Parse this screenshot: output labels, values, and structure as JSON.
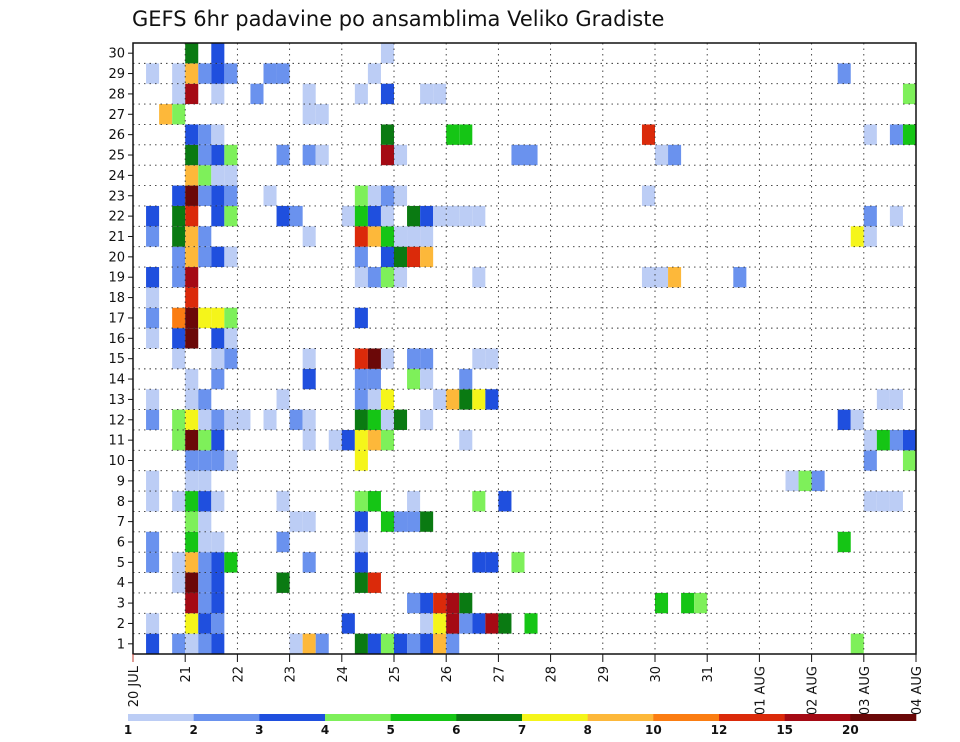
{
  "chart_data": {
    "type": "heatmap",
    "title": "GEFS 6hr padavine po ansamblima Veliko Gradiste",
    "xlabel": "",
    "ylabel": "",
    "x_tick_labels": [
      "20 JUL",
      "21",
      "22",
      "23",
      "24",
      "25",
      "26",
      "27",
      "28",
      "29",
      "30",
      "31",
      "01 AUG",
      "02 AUG",
      "03 AUG",
      "04 AUG"
    ],
    "y_tick_labels": [
      "1",
      "2",
      "3",
      "4",
      "5",
      "6",
      "7",
      "8",
      "9",
      "10",
      "11",
      "12",
      "13",
      "14",
      "15",
      "16",
      "17",
      "18",
      "19",
      "20",
      "21",
      "22",
      "23",
      "24",
      "25",
      "26",
      "27",
      "28",
      "29",
      "30"
    ],
    "xlim_days": [
      0,
      15
    ],
    "ylim_members": [
      0,
      30
    ],
    "time_step_hours": 6,
    "grid": "dotted",
    "colorbar": {
      "levels": [
        "1",
        "2",
        "3",
        "4",
        "5",
        "6",
        "7",
        "8",
        "10",
        "12",
        "15",
        "20"
      ],
      "colors": [
        "#bccdf5",
        "#6a92ee",
        "#1f4fde",
        "#7ef05a",
        "#15c515",
        "#0a7a12",
        "#f5f51a",
        "#fdb83a",
        "#fb7d12",
        "#db2a0a",
        "#a50a14",
        "#6b0808"
      ]
    },
    "cells": [
      [
        0.25,
        1,
        "c3"
      ],
      [
        0.75,
        1,
        "c2"
      ],
      [
        1.0,
        1,
        "c1"
      ],
      [
        1.25,
        1,
        "c2"
      ],
      [
        1.5,
        1,
        "c3"
      ],
      [
        3.0,
        1,
        "c1"
      ],
      [
        3.25,
        1,
        "c8"
      ],
      [
        3.5,
        1,
        "c2"
      ],
      [
        4.25,
        1,
        "c6"
      ],
      [
        4.5,
        1,
        "c3"
      ],
      [
        4.75,
        1,
        "c4"
      ],
      [
        5.0,
        1,
        "c3"
      ],
      [
        5.25,
        1,
        "c2"
      ],
      [
        5.5,
        1,
        "c3"
      ],
      [
        5.75,
        1,
        "c8"
      ],
      [
        6.0,
        1,
        "c2"
      ],
      [
        13.75,
        1,
        "c4"
      ],
      [
        0.25,
        2,
        "c1"
      ],
      [
        1.0,
        2,
        "c7"
      ],
      [
        1.25,
        2,
        "c3"
      ],
      [
        1.5,
        2,
        "c2"
      ],
      [
        4.0,
        2,
        "c3"
      ],
      [
        5.5,
        2,
        "c1"
      ],
      [
        5.75,
        2,
        "c7"
      ],
      [
        6.0,
        2,
        "c11"
      ],
      [
        6.25,
        2,
        "c2"
      ],
      [
        6.5,
        2,
        "c3"
      ],
      [
        6.75,
        2,
        "c11"
      ],
      [
        7.0,
        2,
        "c6"
      ],
      [
        7.5,
        2,
        "c5"
      ],
      [
        1.0,
        3,
        "c11"
      ],
      [
        1.25,
        3,
        "c2"
      ],
      [
        1.5,
        3,
        "c3"
      ],
      [
        5.25,
        3,
        "c2"
      ],
      [
        5.5,
        3,
        "c3"
      ],
      [
        5.75,
        3,
        "c10"
      ],
      [
        6.0,
        3,
        "c11"
      ],
      [
        6.25,
        3,
        "c6"
      ],
      [
        10.0,
        3,
        "c5"
      ],
      [
        10.5,
        3,
        "c5"
      ],
      [
        10.75,
        3,
        "c4"
      ],
      [
        0.75,
        4,
        "c1"
      ],
      [
        1.0,
        4,
        "c12"
      ],
      [
        1.25,
        4,
        "c2"
      ],
      [
        1.5,
        4,
        "c3"
      ],
      [
        2.75,
        4,
        "c6"
      ],
      [
        4.25,
        4,
        "c6"
      ],
      [
        4.5,
        4,
        "c10"
      ],
      [
        0.25,
        5,
        "c2"
      ],
      [
        0.75,
        5,
        "c1"
      ],
      [
        1.0,
        5,
        "c8"
      ],
      [
        1.25,
        5,
        "c2"
      ],
      [
        1.5,
        5,
        "c3"
      ],
      [
        1.75,
        5,
        "c5"
      ],
      [
        3.25,
        5,
        "c2"
      ],
      [
        4.25,
        5,
        "c3"
      ],
      [
        6.5,
        5,
        "c3"
      ],
      [
        6.75,
        5,
        "c3"
      ],
      [
        7.25,
        5,
        "c4"
      ],
      [
        0.25,
        6,
        "c2"
      ],
      [
        1.0,
        6,
        "c5"
      ],
      [
        1.25,
        6,
        "c1"
      ],
      [
        1.5,
        6,
        "c1"
      ],
      [
        2.75,
        6,
        "c2"
      ],
      [
        4.25,
        6,
        "c1"
      ],
      [
        13.5,
        6,
        "c5"
      ],
      [
        1.0,
        7,
        "c4"
      ],
      [
        1.25,
        7,
        "c1"
      ],
      [
        3.0,
        7,
        "c1"
      ],
      [
        3.25,
        7,
        "c1"
      ],
      [
        4.25,
        7,
        "c3"
      ],
      [
        4.75,
        7,
        "c5"
      ],
      [
        5.0,
        7,
        "c2"
      ],
      [
        5.25,
        7,
        "c2"
      ],
      [
        5.5,
        7,
        "c6"
      ],
      [
        0.25,
        8,
        "c1"
      ],
      [
        0.75,
        8,
        "c1"
      ],
      [
        1.0,
        8,
        "c5"
      ],
      [
        1.25,
        8,
        "c3"
      ],
      [
        1.5,
        8,
        "c1"
      ],
      [
        2.75,
        8,
        "c1"
      ],
      [
        4.25,
        8,
        "c4"
      ],
      [
        4.5,
        8,
        "c5"
      ],
      [
        5.25,
        8,
        "c1"
      ],
      [
        6.5,
        8,
        "c4"
      ],
      [
        7.0,
        8,
        "c3"
      ],
      [
        14.0,
        8,
        "c1"
      ],
      [
        14.25,
        8,
        "c1"
      ],
      [
        14.5,
        8,
        "c1"
      ],
      [
        0.25,
        9,
        "c1"
      ],
      [
        1.0,
        9,
        "c1"
      ],
      [
        1.25,
        9,
        "c1"
      ],
      [
        12.5,
        9,
        "c1"
      ],
      [
        12.75,
        9,
        "c4"
      ],
      [
        13.0,
        9,
        "c2"
      ],
      [
        1.0,
        10,
        "c2"
      ],
      [
        1.25,
        10,
        "c2"
      ],
      [
        1.5,
        10,
        "c2"
      ],
      [
        1.75,
        10,
        "c1"
      ],
      [
        4.25,
        10,
        "c7"
      ],
      [
        14.0,
        10,
        "c2"
      ],
      [
        14.75,
        10,
        "c4"
      ],
      [
        0.75,
        11,
        "c4"
      ],
      [
        1.0,
        11,
        "c12"
      ],
      [
        1.25,
        11,
        "c4"
      ],
      [
        1.5,
        11,
        "c3"
      ],
      [
        3.25,
        11,
        "c1"
      ],
      [
        3.75,
        11,
        "c1"
      ],
      [
        4.0,
        11,
        "c3"
      ],
      [
        4.25,
        11,
        "c7"
      ],
      [
        4.5,
        11,
        "c8"
      ],
      [
        4.75,
        11,
        "c4"
      ],
      [
        6.25,
        11,
        "c1"
      ],
      [
        14.0,
        11,
        "c1"
      ],
      [
        14.25,
        11,
        "c5"
      ],
      [
        14.5,
        11,
        "c2"
      ],
      [
        14.75,
        11,
        "c3"
      ],
      [
        0.25,
        12,
        "c2"
      ],
      [
        0.75,
        12,
        "c4"
      ],
      [
        1.0,
        12,
        "c7"
      ],
      [
        1.25,
        12,
        "c1"
      ],
      [
        1.5,
        12,
        "c2"
      ],
      [
        1.75,
        12,
        "c1"
      ],
      [
        2.0,
        12,
        "c1"
      ],
      [
        2.5,
        12,
        "c1"
      ],
      [
        3.0,
        12,
        "c2"
      ],
      [
        3.25,
        12,
        "c1"
      ],
      [
        4.25,
        12,
        "c6"
      ],
      [
        4.5,
        12,
        "c5"
      ],
      [
        4.75,
        12,
        "c1"
      ],
      [
        5.0,
        12,
        "c6"
      ],
      [
        5.5,
        12,
        "c1"
      ],
      [
        13.5,
        12,
        "c3"
      ],
      [
        13.75,
        12,
        "c1"
      ],
      [
        0.25,
        13,
        "c1"
      ],
      [
        1.0,
        13,
        "c1"
      ],
      [
        1.25,
        13,
        "c2"
      ],
      [
        2.75,
        13,
        "c1"
      ],
      [
        4.25,
        13,
        "c2"
      ],
      [
        4.5,
        13,
        "c1"
      ],
      [
        4.75,
        13,
        "c7"
      ],
      [
        5.75,
        13,
        "c1"
      ],
      [
        6.0,
        13,
        "c8"
      ],
      [
        6.25,
        13,
        "c6"
      ],
      [
        6.5,
        13,
        "c7"
      ],
      [
        6.75,
        13,
        "c3"
      ],
      [
        14.25,
        13,
        "c1"
      ],
      [
        14.5,
        13,
        "c1"
      ],
      [
        1.0,
        14,
        "c1"
      ],
      [
        1.5,
        14,
        "c2"
      ],
      [
        3.25,
        14,
        "c3"
      ],
      [
        4.25,
        14,
        "c2"
      ],
      [
        4.5,
        14,
        "c2"
      ],
      [
        5.25,
        14,
        "c4"
      ],
      [
        5.5,
        14,
        "c1"
      ],
      [
        6.25,
        14,
        "c2"
      ],
      [
        0.75,
        15,
        "c1"
      ],
      [
        1.5,
        15,
        "c1"
      ],
      [
        1.75,
        15,
        "c2"
      ],
      [
        3.25,
        15,
        "c1"
      ],
      [
        4.25,
        15,
        "c10"
      ],
      [
        4.5,
        15,
        "c12"
      ],
      [
        4.75,
        15,
        "c1"
      ],
      [
        5.25,
        15,
        "c2"
      ],
      [
        5.5,
        15,
        "c2"
      ],
      [
        6.5,
        15,
        "c1"
      ],
      [
        6.75,
        15,
        "c1"
      ],
      [
        0.25,
        16,
        "c1"
      ],
      [
        0.75,
        16,
        "c3"
      ],
      [
        1.0,
        16,
        "c12"
      ],
      [
        1.5,
        16,
        "c3"
      ],
      [
        1.75,
        16,
        "c1"
      ],
      [
        0.25,
        17,
        "c2"
      ],
      [
        0.75,
        17,
        "c9"
      ],
      [
        1.0,
        17,
        "c12"
      ],
      [
        1.25,
        17,
        "c7"
      ],
      [
        1.5,
        17,
        "c7"
      ],
      [
        1.75,
        17,
        "c4"
      ],
      [
        4.25,
        17,
        "c3"
      ],
      [
        0.25,
        18,
        "c1"
      ],
      [
        1.0,
        18,
        "c10"
      ],
      [
        0.25,
        19,
        "c3"
      ],
      [
        0.75,
        19,
        "c2"
      ],
      [
        1.0,
        19,
        "c11"
      ],
      [
        4.25,
        19,
        "c1"
      ],
      [
        4.5,
        19,
        "c2"
      ],
      [
        4.75,
        19,
        "c4"
      ],
      [
        5.0,
        19,
        "c1"
      ],
      [
        6.5,
        19,
        "c1"
      ],
      [
        9.75,
        19,
        "c1"
      ],
      [
        10.0,
        19,
        "c1"
      ],
      [
        10.25,
        19,
        "c8"
      ],
      [
        11.5,
        19,
        "c2"
      ],
      [
        0.75,
        20,
        "c2"
      ],
      [
        1.0,
        20,
        "c8"
      ],
      [
        1.25,
        20,
        "c2"
      ],
      [
        1.5,
        20,
        "c3"
      ],
      [
        1.75,
        20,
        "c1"
      ],
      [
        4.25,
        20,
        "c2"
      ],
      [
        4.75,
        20,
        "c3"
      ],
      [
        5.0,
        20,
        "c6"
      ],
      [
        5.25,
        20,
        "c10"
      ],
      [
        5.5,
        20,
        "c8"
      ],
      [
        0.25,
        21,
        "c2"
      ],
      [
        0.75,
        21,
        "c6"
      ],
      [
        1.0,
        21,
        "c8"
      ],
      [
        1.25,
        21,
        "c2"
      ],
      [
        3.25,
        21,
        "c1"
      ],
      [
        4.25,
        21,
        "c10"
      ],
      [
        4.5,
        21,
        "c8"
      ],
      [
        4.75,
        21,
        "c5"
      ],
      [
        5.0,
        21,
        "c1"
      ],
      [
        5.25,
        21,
        "c1"
      ],
      [
        5.5,
        21,
        "c1"
      ],
      [
        13.75,
        21,
        "c7"
      ],
      [
        14.0,
        21,
        "c1"
      ],
      [
        0.25,
        22,
        "c3"
      ],
      [
        0.75,
        22,
        "c6"
      ],
      [
        1.0,
        22,
        "c10"
      ],
      [
        1.5,
        22,
        "c3"
      ],
      [
        1.75,
        22,
        "c4"
      ],
      [
        2.75,
        22,
        "c3"
      ],
      [
        3.0,
        22,
        "c2"
      ],
      [
        4.0,
        22,
        "c1"
      ],
      [
        4.25,
        22,
        "c5"
      ],
      [
        4.5,
        22,
        "c3"
      ],
      [
        4.75,
        22,
        "c1"
      ],
      [
        5.25,
        22,
        "c6"
      ],
      [
        5.5,
        22,
        "c3"
      ],
      [
        5.75,
        22,
        "c1"
      ],
      [
        6.0,
        22,
        "c1"
      ],
      [
        6.25,
        22,
        "c1"
      ],
      [
        6.5,
        22,
        "c1"
      ],
      [
        14.0,
        22,
        "c2"
      ],
      [
        14.5,
        22,
        "c1"
      ],
      [
        0.75,
        23,
        "c3"
      ],
      [
        1.0,
        23,
        "c12"
      ],
      [
        1.25,
        23,
        "c2"
      ],
      [
        1.5,
        23,
        "c3"
      ],
      [
        1.75,
        23,
        "c2"
      ],
      [
        2.5,
        23,
        "c1"
      ],
      [
        4.25,
        23,
        "c4"
      ],
      [
        4.5,
        23,
        "c1"
      ],
      [
        4.75,
        23,
        "c2"
      ],
      [
        5.0,
        23,
        "c1"
      ],
      [
        9.75,
        23,
        "c1"
      ],
      [
        1.0,
        24,
        "c8"
      ],
      [
        1.25,
        24,
        "c4"
      ],
      [
        1.5,
        24,
        "c1"
      ],
      [
        1.75,
        24,
        "c1"
      ],
      [
        1.0,
        25,
        "c6"
      ],
      [
        1.25,
        25,
        "c2"
      ],
      [
        1.5,
        25,
        "c3"
      ],
      [
        1.75,
        25,
        "c4"
      ],
      [
        2.75,
        25,
        "c2"
      ],
      [
        3.25,
        25,
        "c2"
      ],
      [
        3.5,
        25,
        "c1"
      ],
      [
        4.75,
        25,
        "c11"
      ],
      [
        5.0,
        25,
        "c1"
      ],
      [
        7.25,
        25,
        "c2"
      ],
      [
        7.5,
        25,
        "c2"
      ],
      [
        10.0,
        25,
        "c1"
      ],
      [
        10.25,
        25,
        "c2"
      ],
      [
        1.0,
        26,
        "c3"
      ],
      [
        1.25,
        26,
        "c2"
      ],
      [
        1.5,
        26,
        "c1"
      ],
      [
        4.75,
        26,
        "c6"
      ],
      [
        6.0,
        26,
        "c5"
      ],
      [
        6.25,
        26,
        "c5"
      ],
      [
        9.75,
        26,
        "c10"
      ],
      [
        14.0,
        26,
        "c1"
      ],
      [
        14.5,
        26,
        "c2"
      ],
      [
        14.75,
        26,
        "c5"
      ],
      [
        0.5,
        27,
        "c8"
      ],
      [
        0.75,
        27,
        "c4"
      ],
      [
        3.25,
        27,
        "c1"
      ],
      [
        3.5,
        27,
        "c1"
      ],
      [
        0.75,
        28,
        "c1"
      ],
      [
        1.0,
        28,
        "c11"
      ],
      [
        1.5,
        28,
        "c1"
      ],
      [
        2.25,
        28,
        "c2"
      ],
      [
        3.25,
        28,
        "c1"
      ],
      [
        4.25,
        28,
        "c1"
      ],
      [
        4.75,
        28,
        "c3"
      ],
      [
        5.5,
        28,
        "c1"
      ],
      [
        5.75,
        28,
        "c1"
      ],
      [
        14.75,
        28,
        "c4"
      ],
      [
        0.25,
        29,
        "c1"
      ],
      [
        0.75,
        29,
        "c1"
      ],
      [
        1.0,
        29,
        "c8"
      ],
      [
        1.25,
        29,
        "c2"
      ],
      [
        1.5,
        29,
        "c3"
      ],
      [
        1.75,
        29,
        "c2"
      ],
      [
        2.5,
        29,
        "c2"
      ],
      [
        2.75,
        29,
        "c2"
      ],
      [
        4.5,
        29,
        "c1"
      ],
      [
        13.5,
        29,
        "c2"
      ],
      [
        1.0,
        30,
        "c6"
      ],
      [
        1.5,
        30,
        "c3"
      ],
      [
        4.75,
        30,
        "c1"
      ]
    ]
  }
}
